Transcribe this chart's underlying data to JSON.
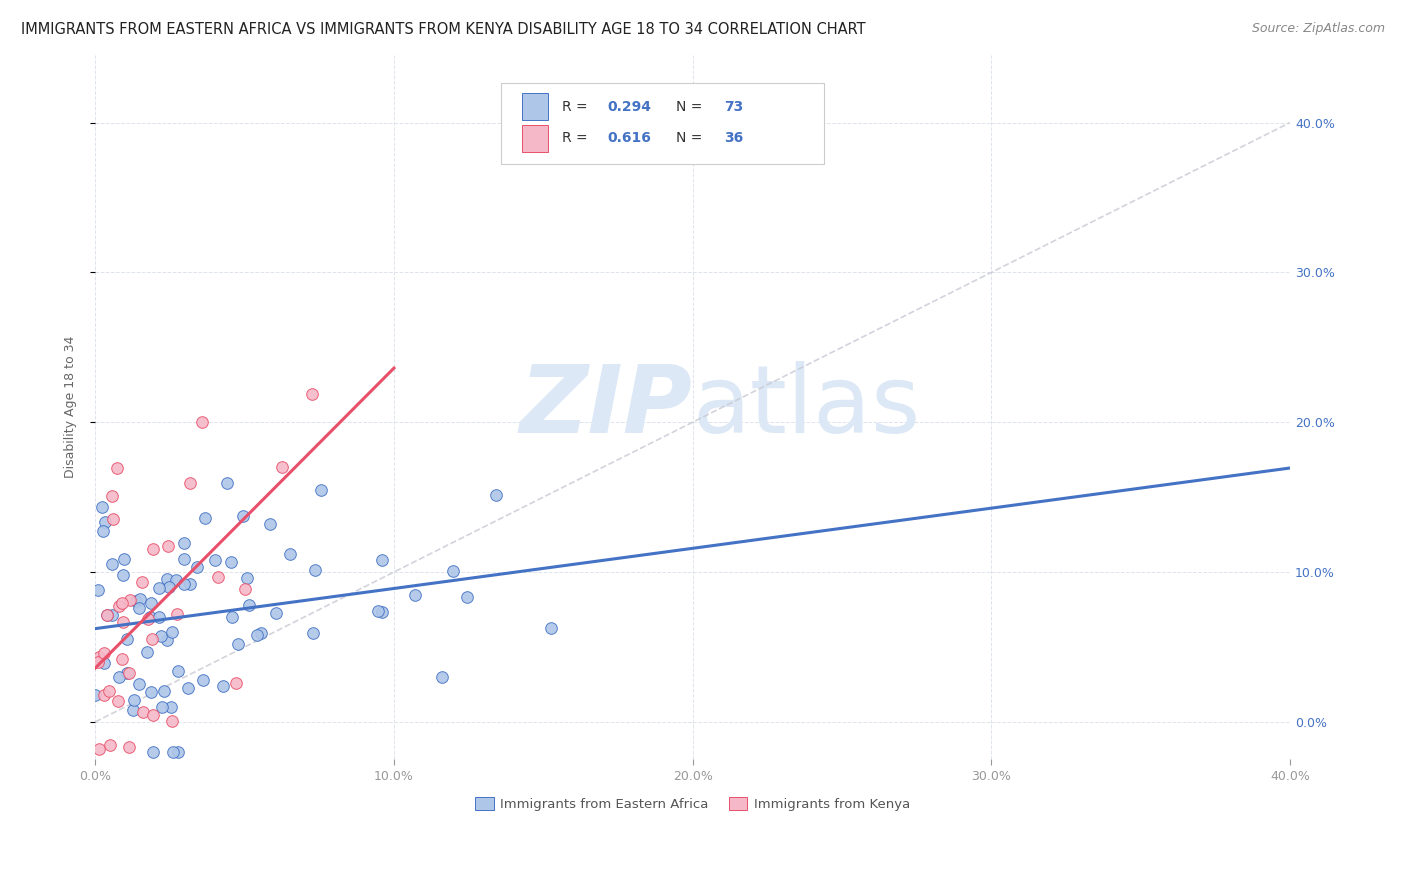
{
  "title": "IMMIGRANTS FROM EASTERN AFRICA VS IMMIGRANTS FROM KENYA DISABILITY AGE 18 TO 34 CORRELATION CHART",
  "source": "Source: ZipAtlas.com",
  "ylabel": "Disability Age 18 to 34",
  "legend_label_1": "Immigrants from Eastern Africa",
  "legend_label_2": "Immigrants from Kenya",
  "r1": 0.294,
  "n1": 73,
  "r2": 0.616,
  "n2": 36,
  "color1": "#aec6e8",
  "color2": "#f5b8c8",
  "line_color1": "#4472c4",
  "line_color2": "#e8506a",
  "diag_color": "#c8c8d4",
  "xlim": [
    0.0,
    0.4
  ],
  "ylim": [
    -0.025,
    0.445
  ],
  "yticks": [
    0.0,
    0.1,
    0.2,
    0.3,
    0.4
  ],
  "xticks": [
    0.0,
    0.1,
    0.2,
    0.3,
    0.4
  ],
  "watermark_zip": "ZIP",
  "watermark_atlas": "atlas",
  "watermark_color": "#dce8f5",
  "background_color": "#ffffff",
  "grid_color": "#dde3ec",
  "title_fontsize": 10.5,
  "source_fontsize": 9,
  "axis_label_fontsize": 9,
  "tick_fontsize": 9,
  "legend_fontsize": 9.5,
  "r_fontsize": 10,
  "seed1": 7,
  "seed2": 15
}
